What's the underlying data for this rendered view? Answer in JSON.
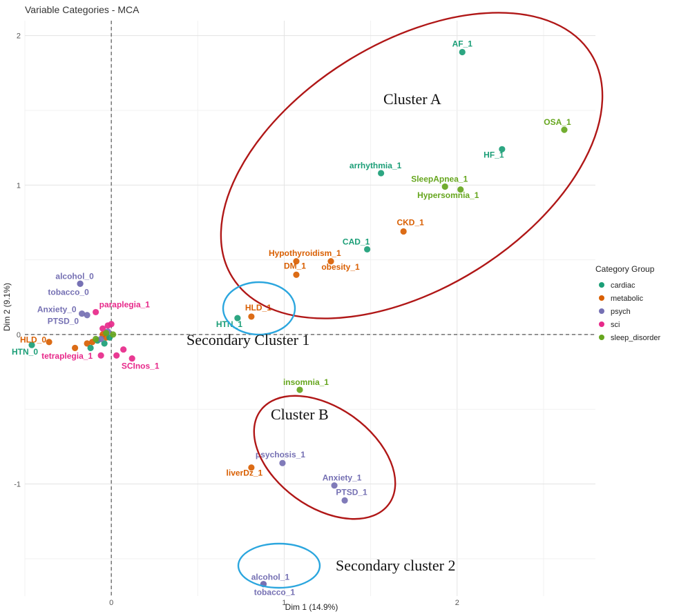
{
  "chart_data": {
    "type": "scatter",
    "title": "Variable Categories - MCA",
    "xlabel": "Dim 1 (14.9%)",
    "ylabel": "Dim 2 (9.1%)",
    "xlim": [
      -0.5,
      2.8
    ],
    "ylim": [
      -1.75,
      2.1
    ],
    "x_ticks": [
      0,
      1,
      2
    ],
    "y_ticks": [
      -1,
      0,
      1,
      2
    ],
    "grid": true,
    "reference_lines": {
      "x": 0,
      "y": 0
    },
    "legend": {
      "title": "Category Group",
      "placement": "right",
      "entries": [
        {
          "group": "cardiac",
          "label": "cardiac",
          "color": "#1B9E77"
        },
        {
          "group": "metabolic",
          "label": "metabolic",
          "color": "#D95F02"
        },
        {
          "group": "psych",
          "label": "psych",
          "color": "#7570B3"
        },
        {
          "group": "sci",
          "label": "sci",
          "color": "#E7298A"
        },
        {
          "group": "sleep_disorder",
          "label": "sleep_disorder",
          "color": "#66A61E"
        }
      ]
    },
    "points": [
      {
        "label": "AF_1",
        "group": "cardiac",
        "x": 2.03,
        "y": 1.89
      },
      {
        "label": "OSA_1",
        "group": "sleep_disorder",
        "x": 2.62,
        "y": 1.37
      },
      {
        "label": "HF_1",
        "group": "cardiac",
        "x": 2.26,
        "y": 1.24
      },
      {
        "label": "arrhythmia_1",
        "group": "cardiac",
        "x": 1.56,
        "y": 1.08
      },
      {
        "label": "SleepApnea_1",
        "group": "sleep_disorder",
        "x": 1.93,
        "y": 0.99
      },
      {
        "label": "Hypersomnia_1",
        "group": "sleep_disorder",
        "x": 2.02,
        "y": 0.97
      },
      {
        "label": "CKD_1",
        "group": "metabolic",
        "x": 1.69,
        "y": 0.69
      },
      {
        "label": "CAD_1",
        "group": "cardiac",
        "x": 1.48,
        "y": 0.57
      },
      {
        "label": "Hypothyroidism_1",
        "group": "metabolic",
        "x": 1.07,
        "y": 0.49
      },
      {
        "label": "obesity_1",
        "group": "metabolic",
        "x": 1.27,
        "y": 0.49
      },
      {
        "label": "DM_1",
        "group": "metabolic",
        "x": 1.07,
        "y": 0.4
      },
      {
        "label": "HLD_1",
        "group": "metabolic",
        "x": 0.81,
        "y": 0.12
      },
      {
        "label": "HTN_1",
        "group": "cardiac",
        "x": 0.73,
        "y": 0.11
      },
      {
        "label": "insomnia_1",
        "group": "sleep_disorder",
        "x": 1.09,
        "y": -0.37
      },
      {
        "label": "psychosis_1",
        "group": "psych",
        "x": 0.99,
        "y": -0.86
      },
      {
        "label": "liverDz_1",
        "group": "metabolic",
        "x": 0.81,
        "y": -0.89
      },
      {
        "label": "Anxiety_1",
        "group": "psych",
        "x": 1.29,
        "y": -1.01
      },
      {
        "label": "PTSD_1",
        "group": "psych",
        "x": 1.35,
        "y": -1.11
      },
      {
        "label": "alcohol_1",
        "group": "psych",
        "x": 0.88,
        "y": -1.67
      },
      {
        "label": "tobacco_1",
        "group": "psych",
        "x": 0.88,
        "y": -1.67
      },
      {
        "label": "alcohol_0",
        "group": "psych",
        "x": -0.18,
        "y": 0.34
      },
      {
        "label": "tobacco_0",
        "group": "psych",
        "x": -0.18,
        "y": 0.34
      },
      {
        "label": "paraplegia_1",
        "group": "sci",
        "x": -0.09,
        "y": 0.15
      },
      {
        "label": "Anxiety_0",
        "group": "psych",
        "x": -0.17,
        "y": 0.14
      },
      {
        "label": "PTSD_0",
        "group": "psych",
        "x": -0.14,
        "y": 0.13
      },
      {
        "label": "HLD_0",
        "group": "metabolic",
        "x": -0.36,
        "y": -0.05
      },
      {
        "label": "HTN_0",
        "group": "cardiac",
        "x": -0.46,
        "y": -0.07
      },
      {
        "label": "tetraplegia_1",
        "group": "sci",
        "x": -0.06,
        "y": -0.14
      },
      {
        "label": "SCInos_1",
        "group": "sci",
        "x": 0.12,
        "y": -0.16
      },
      {
        "label": "",
        "group": "sci",
        "x": -0.02,
        "y": 0.06
      },
      {
        "label": "",
        "group": "sci",
        "x": 0.0,
        "y": 0.07
      },
      {
        "label": "",
        "group": "sci",
        "x": -0.05,
        "y": 0.04
      },
      {
        "label": "",
        "group": "sci",
        "x": 0.07,
        "y": -0.1
      },
      {
        "label": "",
        "group": "sci",
        "x": 0.03,
        "y": -0.14
      },
      {
        "label": "",
        "group": "metabolic",
        "x": -0.21,
        "y": -0.09
      },
      {
        "label": "",
        "group": "metabolic",
        "x": -0.14,
        "y": -0.06
      },
      {
        "label": "",
        "group": "metabolic",
        "x": -0.11,
        "y": -0.05
      },
      {
        "label": "",
        "group": "metabolic",
        "x": -0.03,
        "y": -0.02
      },
      {
        "label": "",
        "group": "metabolic",
        "x": -0.05,
        "y": 0.0
      },
      {
        "label": "",
        "group": "cardiac",
        "x": -0.12,
        "y": -0.09
      },
      {
        "label": "",
        "group": "cardiac",
        "x": -0.08,
        "y": -0.04
      },
      {
        "label": "",
        "group": "cardiac",
        "x": -0.04,
        "y": -0.06
      },
      {
        "label": "",
        "group": "cardiac",
        "x": -0.01,
        "y": -0.02
      },
      {
        "label": "",
        "group": "psych",
        "x": -0.02,
        "y": 0.02
      },
      {
        "label": "",
        "group": "psych",
        "x": -0.06,
        "y": -0.03
      },
      {
        "label": "",
        "group": "sleep_disorder",
        "x": -0.03,
        "y": 0.01
      },
      {
        "label": "",
        "group": "sleep_disorder",
        "x": -0.09,
        "y": -0.03
      },
      {
        "label": "",
        "group": "sleep_disorder",
        "x": 0.01,
        "y": 0.0
      }
    ],
    "annotations": [
      {
        "text": "Cluster A",
        "kind": "red-ellipse"
      },
      {
        "text": "Secondary Cluster 1",
        "kind": "blue-ellipse"
      },
      {
        "text": "Cluster B",
        "kind": "red-ellipse"
      },
      {
        "text": "Secondary cluster 2",
        "kind": "blue-ellipse"
      }
    ],
    "annotation_colors": {
      "red": "#B01717",
      "blue": "#2BA6DE"
    }
  }
}
